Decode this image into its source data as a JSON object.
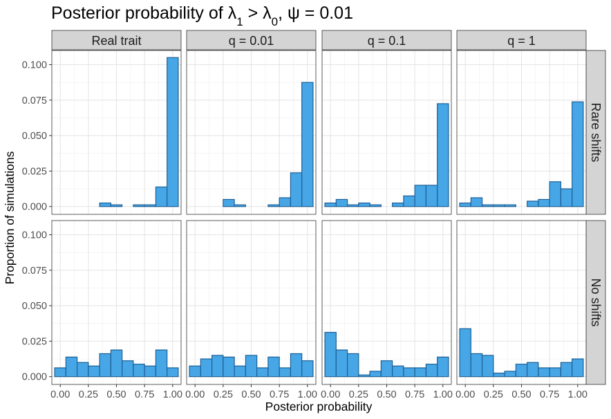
{
  "chart_data": {
    "type": "bar",
    "title": "Posterior probability of λ₁ > λ₀, ψ = 0.01",
    "title_parts": {
      "prefix": "Posterior probability of ",
      "sym1": "λ",
      "sub1": "1",
      "mid": " > ",
      "sym2": "λ",
      "sub2": "0",
      "rest": ", ψ = 0.01"
    },
    "xlabel": "Posterior probability",
    "ylabel": "Proportion of simulations",
    "xlim": [
      -0.075,
      1.075
    ],
    "ylim": [
      -0.0055,
      0.11
    ],
    "x_ticks": [
      "0.00",
      "0.25",
      "0.50",
      "0.75",
      "1.00"
    ],
    "y_ticks": [
      "0.000",
      "0.025",
      "0.050",
      "0.075",
      "0.100"
    ],
    "bin_width": 0.1,
    "bin_centers": [
      0.0,
      0.1,
      0.2,
      0.3,
      0.4,
      0.5,
      0.6,
      0.7,
      0.8,
      0.9,
      1.0
    ],
    "columns": [
      "Real trait",
      "q = 0.01",
      "q = 0.1",
      "q = 1"
    ],
    "rows": [
      "Rare shifts",
      "No shifts"
    ],
    "bar_fill": "#46a6e6",
    "bar_stroke": "#1d5f95",
    "strip_fill": "#d4d4d4",
    "grid": true,
    "panels": [
      {
        "row": "Rare shifts",
        "column": "Real trait",
        "values": [
          0,
          0,
          0,
          0,
          0.0025,
          0.0012,
          0,
          0.0012,
          0.0012,
          0.0138,
          0.105
        ]
      },
      {
        "row": "Rare shifts",
        "column": "q = 0.01",
        "values": [
          0,
          0,
          0,
          0.005,
          0.0012,
          0,
          0,
          0.0012,
          0.0062,
          0.0238,
          0.0875
        ]
      },
      {
        "row": "Rare shifts",
        "column": "q = 0.1",
        "values": [
          0.0025,
          0.005,
          0.0012,
          0.0025,
          0.0012,
          0,
          0.0025,
          0.0075,
          0.015,
          0.015,
          0.0725
        ]
      },
      {
        "row": "Rare shifts",
        "column": "q = 1",
        "values": [
          0.0025,
          0.0062,
          0.0012,
          0.0012,
          0.0012,
          0,
          0.0038,
          0.005,
          0.0175,
          0.0125,
          0.0738
        ]
      },
      {
        "row": "No shifts",
        "column": "Real trait",
        "values": [
          0.0062,
          0.0138,
          0.01,
          0.0075,
          0.0162,
          0.0188,
          0.0112,
          0.0088,
          0.0075,
          0.0188,
          0.0062
        ]
      },
      {
        "row": "No shifts",
        "column": "q = 0.01",
        "values": [
          0.0075,
          0.0125,
          0.015,
          0.0138,
          0.0075,
          0.015,
          0.0062,
          0.0138,
          0.0062,
          0.0162,
          0.0112
        ]
      },
      {
        "row": "No shifts",
        "column": "q = 0.1",
        "values": [
          0.0312,
          0.0188,
          0.0162,
          0.0012,
          0.0038,
          0.0112,
          0.0075,
          0.0062,
          0.0062,
          0.0088,
          0.0138
        ]
      },
      {
        "row": "No shifts",
        "column": "q = 1",
        "values": [
          0.0338,
          0.0162,
          0.015,
          0.0025,
          0.0038,
          0.0088,
          0.01,
          0.0062,
          0.0062,
          0.01,
          0.0125
        ]
      }
    ]
  }
}
